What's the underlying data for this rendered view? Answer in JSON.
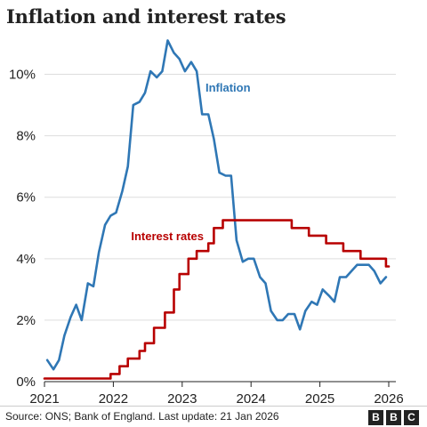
{
  "chart_data": {
    "type": "line",
    "title": "Inflation and interest rates",
    "xlabel": "",
    "ylabel": "",
    "xlim": [
      2021.0,
      2026.0
    ],
    "ylim": [
      0,
      11
    ],
    "x_ticks": [
      "2021",
      "2022",
      "2023",
      "2024",
      "2025",
      "2026"
    ],
    "y_ticks": [
      "0%",
      "2%",
      "4%",
      "6%",
      "8%",
      "10%"
    ],
    "grid": "horizontal",
    "series": [
      {
        "name": "Inflation",
        "color": "#2f77b5",
        "step": false,
        "points": [
          [
            2021.04,
            0.7
          ],
          [
            2021.13,
            0.4
          ],
          [
            2021.21,
            0.7
          ],
          [
            2021.29,
            1.5
          ],
          [
            2021.38,
            2.1
          ],
          [
            2021.46,
            2.5
          ],
          [
            2021.54,
            2.0
          ],
          [
            2021.63,
            3.2
          ],
          [
            2021.71,
            3.1
          ],
          [
            2021.79,
            4.2
          ],
          [
            2021.88,
            5.1
          ],
          [
            2021.96,
            5.4
          ],
          [
            2022.04,
            5.5
          ],
          [
            2022.13,
            6.2
          ],
          [
            2022.21,
            7.0
          ],
          [
            2022.29,
            9.0
          ],
          [
            2022.38,
            9.1
          ],
          [
            2022.46,
            9.4
          ],
          [
            2022.54,
            10.1
          ],
          [
            2022.63,
            9.9
          ],
          [
            2022.71,
            10.1
          ],
          [
            2022.79,
            11.1
          ],
          [
            2022.88,
            10.7
          ],
          [
            2022.96,
            10.5
          ],
          [
            2023.04,
            10.1
          ],
          [
            2023.13,
            10.4
          ],
          [
            2023.21,
            10.1
          ],
          [
            2023.29,
            8.7
          ],
          [
            2023.38,
            8.7
          ],
          [
            2023.46,
            7.9
          ],
          [
            2023.54,
            6.8
          ],
          [
            2023.63,
            6.7
          ],
          [
            2023.71,
            6.7
          ],
          [
            2023.79,
            4.6
          ],
          [
            2023.88,
            3.9
          ],
          [
            2023.96,
            4.0
          ],
          [
            2024.04,
            4.0
          ],
          [
            2024.13,
            3.4
          ],
          [
            2024.21,
            3.2
          ],
          [
            2024.29,
            2.3
          ],
          [
            2024.38,
            2.0
          ],
          [
            2024.46,
            2.0
          ],
          [
            2024.54,
            2.2
          ],
          [
            2024.63,
            2.2
          ],
          [
            2024.71,
            1.7
          ],
          [
            2024.79,
            2.3
          ],
          [
            2024.88,
            2.6
          ],
          [
            2024.96,
            2.5
          ],
          [
            2025.04,
            3.0
          ],
          [
            2025.13,
            2.8
          ],
          [
            2025.21,
            2.6
          ],
          [
            2025.29,
            3.4
          ],
          [
            2025.38,
            3.4
          ],
          [
            2025.46,
            3.6
          ],
          [
            2025.54,
            3.8
          ],
          [
            2025.63,
            3.8
          ],
          [
            2025.71,
            3.8
          ],
          [
            2025.79,
            3.6
          ],
          [
            2025.88,
            3.2
          ],
          [
            2025.96,
            3.4
          ]
        ]
      },
      {
        "name": "Interest rates",
        "color": "#b80000",
        "step": true,
        "points": [
          [
            2021.0,
            0.1
          ],
          [
            2021.96,
            0.25
          ],
          [
            2022.09,
            0.5
          ],
          [
            2022.21,
            0.75
          ],
          [
            2022.38,
            1.0
          ],
          [
            2022.46,
            1.25
          ],
          [
            2022.59,
            1.75
          ],
          [
            2022.75,
            2.25
          ],
          [
            2022.88,
            3.0
          ],
          [
            2022.96,
            3.5
          ],
          [
            2023.09,
            4.0
          ],
          [
            2023.21,
            4.25
          ],
          [
            2023.38,
            4.5
          ],
          [
            2023.46,
            5.0
          ],
          [
            2023.59,
            5.25
          ],
          [
            2024.59,
            5.0
          ],
          [
            2024.84,
            4.75
          ],
          [
            2025.09,
            4.5
          ],
          [
            2025.34,
            4.25
          ],
          [
            2025.59,
            4.0
          ],
          [
            2025.96,
            3.75
          ],
          [
            2026.0,
            3.75
          ]
        ]
      }
    ]
  },
  "footer": {
    "source": "Source: ONS; Bank of England. Last update: 21 Jan 2026",
    "logo_letters": [
      "B",
      "B",
      "C"
    ]
  }
}
